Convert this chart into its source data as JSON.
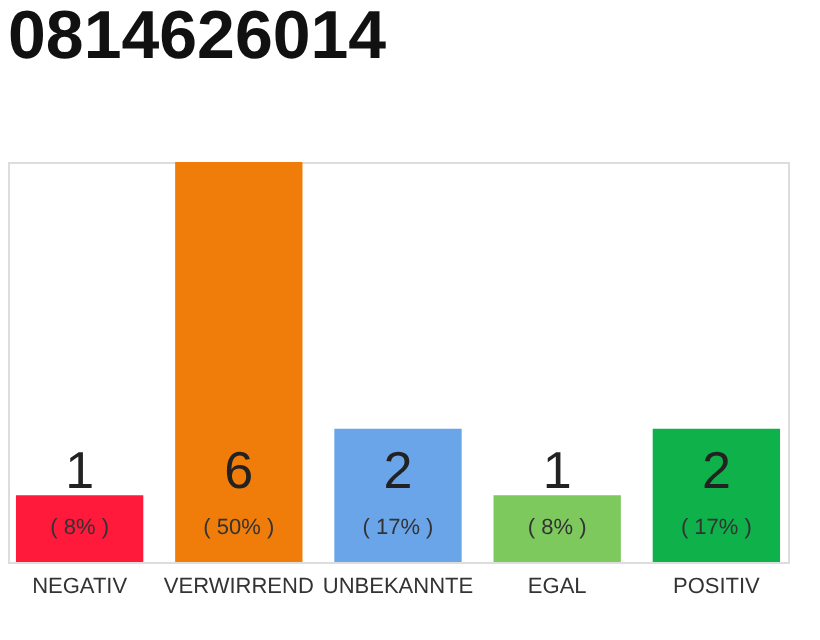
{
  "chart_data": {
    "type": "bar",
    "title": "0814626014",
    "categories": [
      "NEGATIV",
      "VERWIRREND",
      "UNBEKANNTE",
      "EGAL",
      "POSITIV"
    ],
    "values": [
      1,
      6,
      2,
      1,
      2
    ],
    "colors": [
      "#ff1a3c",
      "#f07d0a",
      "#6aa5ea",
      "#7dc95e",
      "#0eb14a"
    ],
    "ylim": [
      0,
      6
    ],
    "tick_labels": "x",
    "data_labels": true,
    "grid": false,
    "annotations": [
      "( 8% )",
      "( 50% )",
      "( 17% )",
      "( 8% )",
      "( 17% )"
    ]
  }
}
